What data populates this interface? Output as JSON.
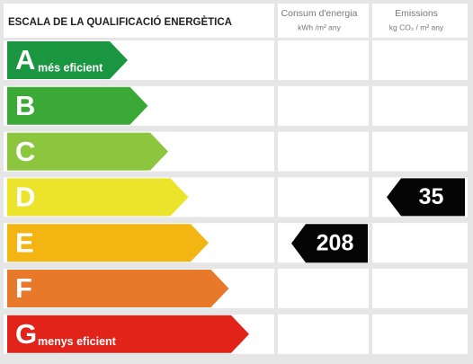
{
  "header": {
    "title": "ESCALA DE LA QUALIFICACIÓ ENERGÈTICA",
    "columns": [
      {
        "title": "Consum d'energia",
        "unit": "kWh /m² any"
      },
      {
        "title": "Emissions",
        "unit": "kg CO₂ / m² any"
      }
    ]
  },
  "rows": [
    {
      "letter": "A",
      "label": "més eficient",
      "color": "#1a9641"
    },
    {
      "letter": "B",
      "color": "#3aa935"
    },
    {
      "letter": "C",
      "color": "#8cc63f"
    },
    {
      "letter": "D",
      "color": "#ece42a",
      "emissions": 35
    },
    {
      "letter": "E",
      "color": "#f3b512",
      "consumption": 208
    },
    {
      "letter": "F",
      "color": "#e8792b"
    },
    {
      "letter": "G",
      "label": "menys eficient",
      "color": "#e2231a"
    }
  ]
}
